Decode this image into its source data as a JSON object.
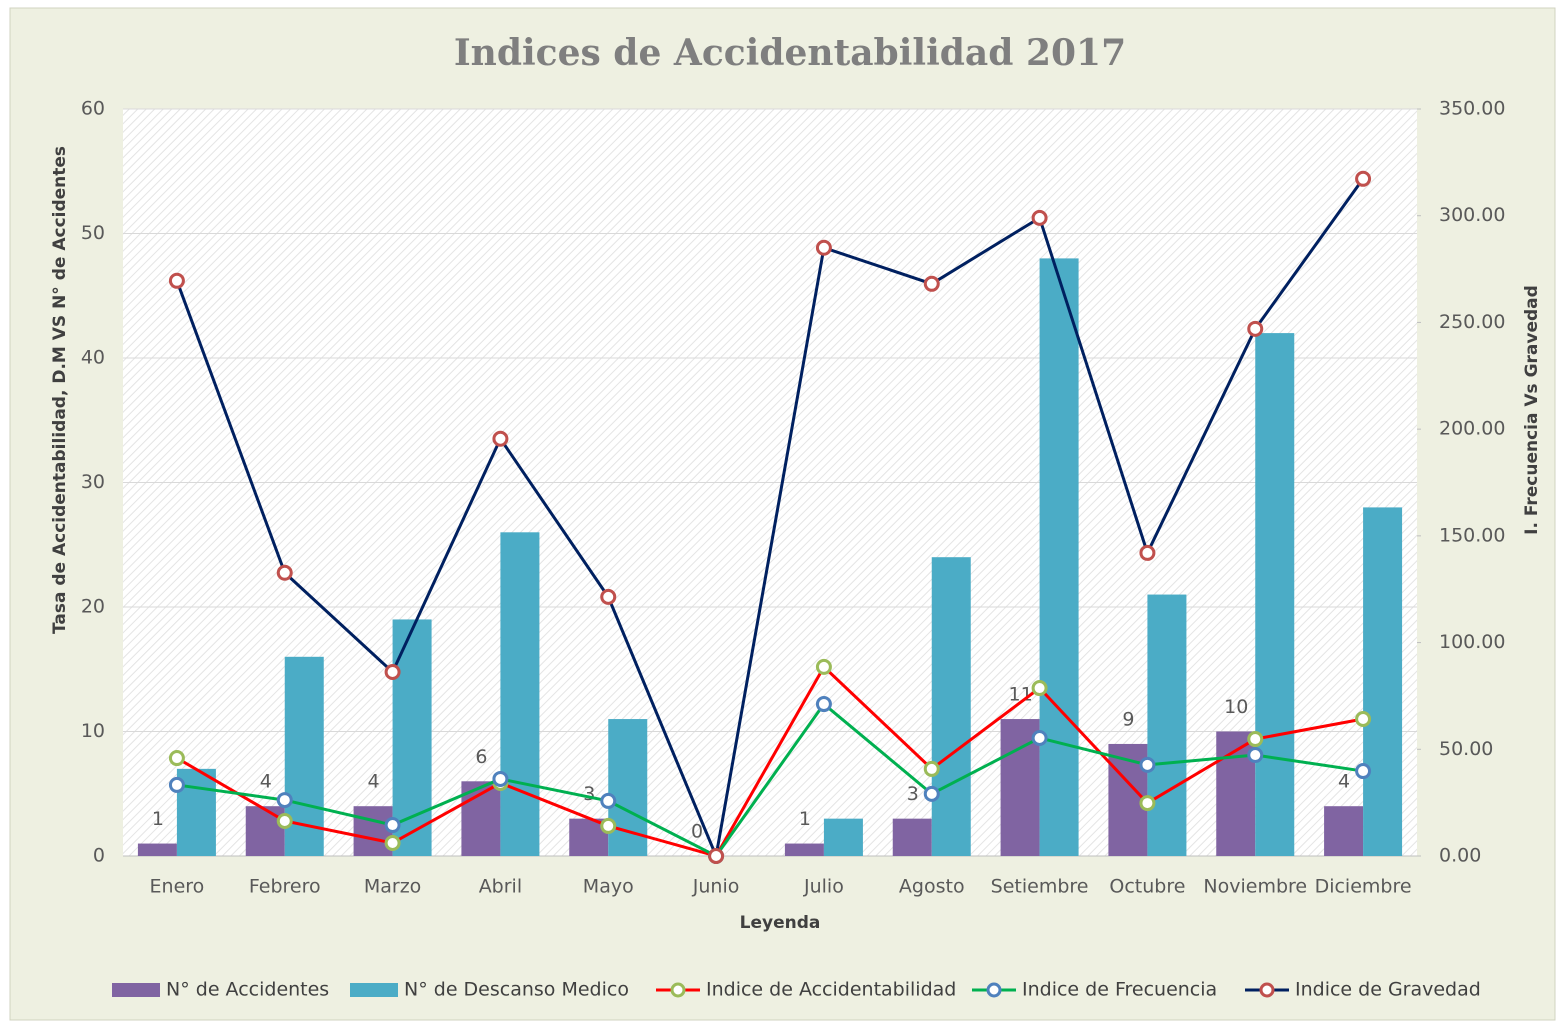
{
  "chart_data": {
    "type": "combo",
    "title": "Indices de Accidentabilidad 2017",
    "x_label": "Leyenda",
    "y_label": "Tasa de Accidentabilidad, D.M VS N° de Accidentes",
    "y2_label": "I. Frecuencia Vs Gravedad",
    "categories": [
      "Enero",
      "Febrero",
      "Marzo",
      "Abril",
      "Mayo",
      "Junio",
      "Julio",
      "Agosto",
      "Setiembre",
      "Octubre",
      "Noviembre",
      "Diciembre"
    ],
    "ylim": [
      0,
      60
    ],
    "yticks": [
      0,
      10,
      20,
      30,
      40,
      50,
      60
    ],
    "y2lim": [
      0,
      350
    ],
    "y2ticks": [
      {
        "value": 0,
        "label": "0.00"
      },
      {
        "value": 50,
        "label": "50.00"
      },
      {
        "value": 100,
        "label": "100.00"
      },
      {
        "value": 150,
        "label": "150.00"
      },
      {
        "value": 200,
        "label": "200.00"
      },
      {
        "value": 250,
        "label": "250.00"
      },
      {
        "value": 300,
        "label": "300.00"
      },
      {
        "value": 350,
        "label": "350.00"
      }
    ],
    "grid": true,
    "legend": "bottom",
    "series": [
      {
        "name": "N° de Accidentes",
        "type": "bar",
        "color": "#8064a2",
        "show_labels": true,
        "values": [
          1,
          4,
          4,
          6,
          3,
          0,
          1,
          3,
          11,
          9,
          10,
          4
        ]
      },
      {
        "name": "N° de Descanso Medico",
        "type": "bar",
        "color": "#4bacc6",
        "values": [
          7,
          16,
          19,
          26,
          11,
          0,
          3,
          24,
          48,
          21,
          42,
          28
        ]
      },
      {
        "name": "Indice de Accidentabilidad",
        "type": "line",
        "axis": "y2",
        "color": "#ff0000",
        "marker_color": "#9bbb59",
        "values": [
          45.9,
          16.4,
          6.1,
          34.2,
          14.1,
          0,
          88.6,
          40.8,
          78.7,
          24.8,
          54.8,
          64.2
        ]
      },
      {
        "name": "Indice de Frecuencia",
        "type": "line",
        "axis": "y2",
        "color": "#00b050",
        "marker_color": "#4f81bd",
        "values": [
          33.3,
          26.2,
          14.5,
          36.1,
          25.8,
          0,
          71.2,
          29.1,
          55.3,
          42.7,
          47.3,
          39.8
        ]
      },
      {
        "name": "Indice de Gravedad",
        "type": "line",
        "axis": "y2",
        "color": "#002060",
        "marker_color": "#c0504d",
        "values": [
          269.5,
          132.7,
          86.2,
          195.5,
          121.4,
          0,
          285,
          268.1,
          299,
          142,
          247,
          317.3
        ]
      }
    ]
  }
}
